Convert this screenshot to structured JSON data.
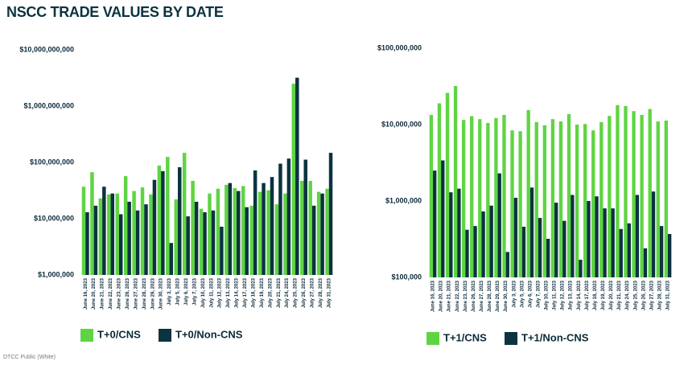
{
  "title": "NSCC TRADE VALUES BY DATE",
  "footer": "DTCC Public (White)",
  "chart_data": [
    {
      "type": "bar",
      "log_scale": true,
      "grid": false,
      "categories": [
        "June 16, 2023",
        "June 20, 2023",
        "June 21, 2023",
        "June 22, 2023",
        "June 23, 2023",
        "June 26, 2023",
        "June 27, 2023",
        "June 28, 2023",
        "June 29, 2023",
        "June 30, 2023",
        "July 3, 2023",
        "July 5, 2023",
        "July 6, 2023",
        "July 7, 2023",
        "July 10, 2023",
        "July 11, 2023",
        "July 12, 2023",
        "July 13, 2023",
        "July 14, 2023",
        "July 17, 2023",
        "July 18, 2023",
        "July 19, 2023",
        "July 20, 2023",
        "July 21, 2023",
        "July 24, 2023",
        "July 25, 2023",
        "July 26, 2023",
        "July 27, 2023",
        "July 28, 2023",
        "July 31, 2023"
      ],
      "series": [
        {
          "name": "T+0/CNS",
          "color": "#5fd443",
          "values": [
            37000000,
            67000000,
            23000000,
            27000000,
            28000000,
            57000000,
            31000000,
            36000000,
            27000000,
            88000000,
            125000000,
            22000000,
            148000000,
            47000000,
            15000000,
            28000000,
            34000000,
            40000000,
            35000000,
            38000000,
            17000000,
            30000000,
            32000000,
            18000000,
            28000000,
            2500000000,
            47000000,
            47000000,
            30000000,
            34000000
          ]
        },
        {
          "name": "T+0/Non-CNS",
          "color": "#0b3340",
          "values": [
            13000000,
            17000000,
            37000000,
            28000000,
            12000000,
            20000000,
            14000000,
            18000000,
            49000000,
            70000000,
            3700000,
            82000000,
            11000000,
            20000000,
            13000000,
            14000000,
            7200000,
            43000000,
            31000000,
            16000000,
            72000000,
            43000000,
            55000000,
            95000000,
            117000000,
            3200000000,
            112000000,
            17000000,
            28000000,
            148000000
          ]
        }
      ],
      "ylim": [
        1000000,
        10000000000
      ],
      "yticks": [
        {
          "value": 1000000,
          "label": "$1,000,000"
        },
        {
          "value": 10000000,
          "label": "$10,000,000"
        },
        {
          "value": 100000000,
          "label": "$100,000,000"
        },
        {
          "value": 1000000000,
          "label": "$1,000,000,000"
        },
        {
          "value": 10000000000,
          "label": "$10,000,000,000"
        }
      ]
    },
    {
      "type": "bar",
      "log_scale": true,
      "grid": false,
      "categories": [
        "June 16, 2023",
        "June 20, 2023",
        "June 21, 2023",
        "June 22, 2023",
        "June 23, 2023",
        "June 26, 2023",
        "June 27, 2023",
        "June 28, 2023",
        "June 29, 2023",
        "June 30, 2023",
        "July 3, 2023",
        "July 5, 2023",
        "July 6, 2023",
        "July 7, 2023",
        "July 10, 2023",
        "July 11, 2023",
        "July 12, 2023",
        "July 13, 2023",
        "July 14, 2023",
        "July 17, 2023",
        "July 18, 2023",
        "July 19, 2023",
        "July 20, 2023",
        "July 21, 2023",
        "July 24, 2023",
        "July 25, 2023",
        "July 26, 2023",
        "July 27, 2023",
        "July 28, 2023",
        "July 31, 2023"
      ],
      "series": [
        {
          "name": "T+1/CNS",
          "color": "#5fd443",
          "values": [
            13400000,
            19000000,
            26000000,
            32000000,
            11500000,
            12900000,
            11800000,
            10500000,
            12200000,
            13400000,
            8400000,
            8200000,
            15500000,
            10800000,
            9800000,
            11800000,
            11000000,
            13700000,
            10000000,
            10200000,
            8400000,
            10800000,
            13000000,
            18000000,
            17500000,
            15000000,
            13400000,
            16000000,
            11000000,
            11300000
          ]
        },
        {
          "name": "T+1/Non-CNS",
          "color": "#0b3340",
          "values": [
            2500000,
            3400000,
            1300000,
            1450000,
            420000,
            470000,
            730000,
            870000,
            2300000,
            215000,
            1100000,
            460000,
            1500000,
            600000,
            320000,
            950000,
            550000,
            1200000,
            170000,
            1000000,
            1150000,
            800000,
            800000,
            430000,
            510000,
            1200000,
            240000,
            1330000,
            470000,
            370000
          ]
        }
      ],
      "ylim": [
        100000,
        100000000
      ],
      "yticks": [
        {
          "value": 100000,
          "label": "$100,000"
        },
        {
          "value": 1000000,
          "label": "$1,000,000"
        },
        {
          "value": 10000000,
          "label": "$10,000,000"
        },
        {
          "value": 100000000,
          "label": "$100,000,000"
        }
      ]
    }
  ]
}
